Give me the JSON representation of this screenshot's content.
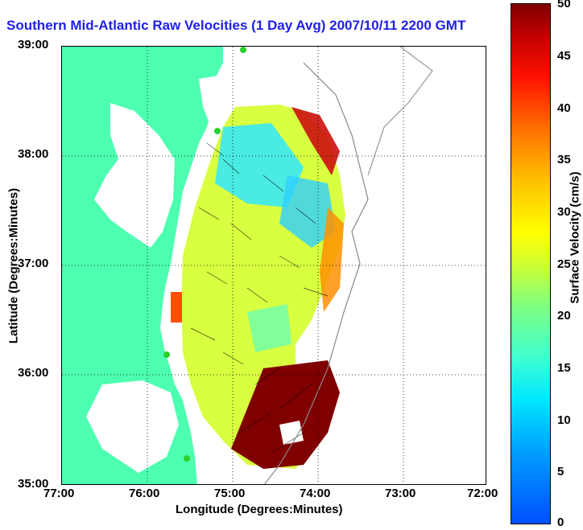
{
  "title": "Southern Mid-Atlantic Raw Velocities (1 Day Avg) 2007/10/11 2200 GMT",
  "x_axis": {
    "label": "Longitude (Degrees:Minutes)",
    "ticks": [
      "77:00",
      "76:00",
      "75:00",
      "74:00",
      "73:00",
      "72:00"
    ]
  },
  "y_axis": {
    "label": "Latitude (Degrees:Minutes)",
    "ticks": [
      "39:00",
      "38:00",
      "37:00",
      "36:00",
      "35:00"
    ]
  },
  "colorbar": {
    "label": "Surface Velocity (cm/s)",
    "ticks": [
      "50",
      "45",
      "40",
      "35",
      "30",
      "25",
      "20",
      "15",
      "10",
      "5",
      "0"
    ],
    "range": [
      0,
      50
    ]
  },
  "colors": {
    "land": "#4dffb0",
    "title": "#1f1fe6",
    "station": "#2bd02b"
  }
}
